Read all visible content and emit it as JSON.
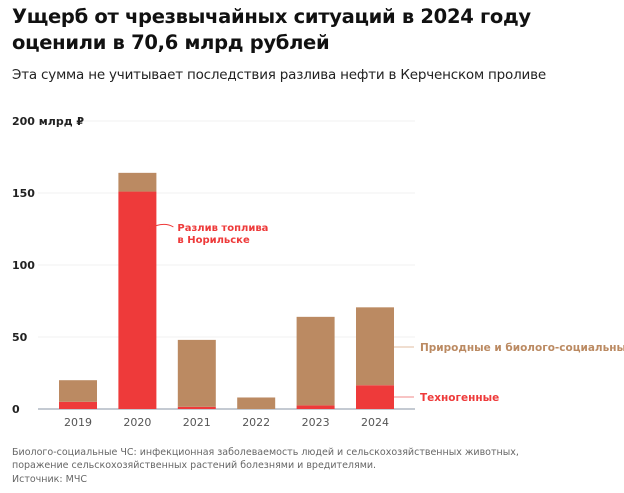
{
  "title": "Ущерб от чрезвычайных ситуаций в 2024 году оценили в 70,6 млрд рублей",
  "subtitle": "Эта сумма не учитывает последствия разлива нефти в Керченском проливе",
  "footnote": "Биолого-социальные ЧС: инфекционная заболеваемость людей и сельскохозяйственных животных, поражение сельскохозяйственных растений болезнями и вредителями.",
  "source": "Источник: МЧС",
  "chart_data": {
    "type": "bar",
    "stacked": true,
    "categories": [
      "2019",
      "2020",
      "2021",
      "2022",
      "2023",
      "2024"
    ],
    "series": [
      {
        "name": "Техногенные",
        "color": "#ee3a3a",
        "values": [
          5,
          151,
          1.5,
          0,
          2.5,
          16.5
        ]
      },
      {
        "name": "Природные и биолого-социальные",
        "color": "#bb8a62",
        "values": [
          15,
          13,
          46.5,
          8,
          61.5,
          54.1
        ]
      }
    ],
    "ylim": [
      0,
      200
    ],
    "yticks": [
      {
        "v": 0,
        "label": "0"
      },
      {
        "v": 50,
        "label": "50"
      },
      {
        "v": 100,
        "label": "100"
      },
      {
        "v": 150,
        "label": "150"
      },
      {
        "v": 200,
        "label": "200 млрд ₽"
      }
    ],
    "annotation": {
      "text1": "Разлив топлива",
      "text2": "в Норильске",
      "year": "2020",
      "value": 125
    },
    "legend": "right"
  }
}
